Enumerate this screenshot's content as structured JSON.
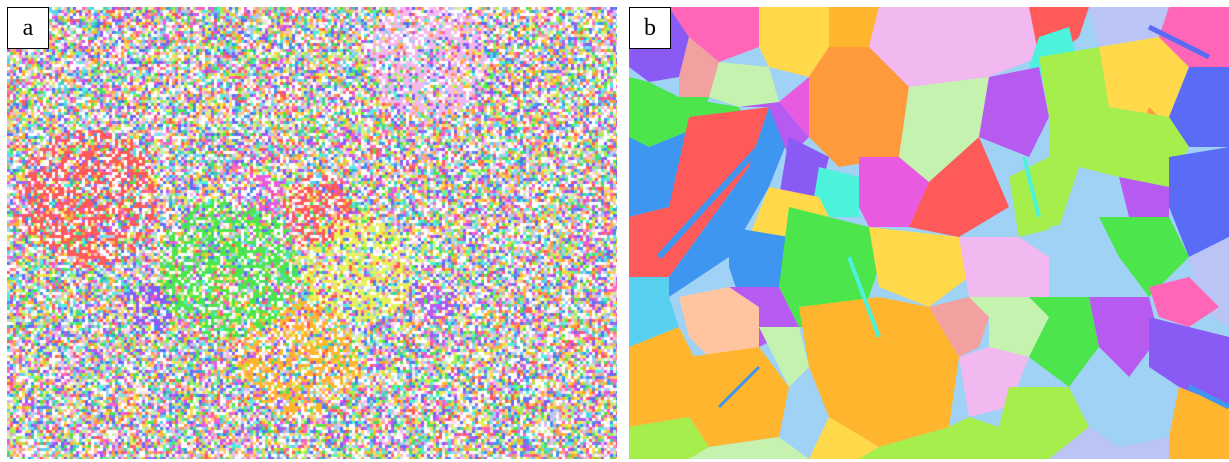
{
  "panels": [
    {
      "id": "a",
      "label": "a",
      "kind": "noisy EBSD orientation map"
    },
    {
      "id": "b",
      "label": "b",
      "kind": "cleaned EBSD orientation map (grains)"
    }
  ],
  "palette": [
    "#ff5a5a",
    "#ff9a3c",
    "#ffb52e",
    "#ffd94a",
    "#e8f05a",
    "#a6ee4c",
    "#4ce64c",
    "#3fd0a0",
    "#4cf2dc",
    "#5ad0f0",
    "#3f96f0",
    "#5a6cf5",
    "#8a5af5",
    "#b75af0",
    "#e85ae0",
    "#ff66b8",
    "#f2a0a0",
    "#ffc4a0",
    "#c6f2b0",
    "#a0d2f5",
    "#bac4f5",
    "#f2b8f0",
    "#fbe0f0"
  ]
}
